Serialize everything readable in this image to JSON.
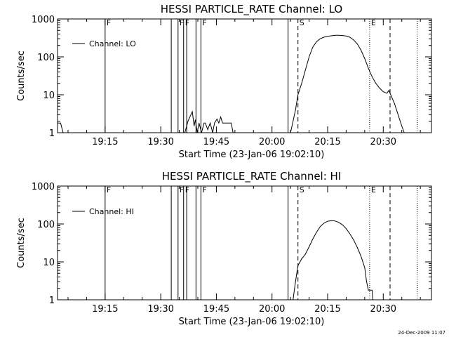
{
  "page": {
    "timestamp": "24-Dec-2009 11:07"
  },
  "chart_data": [
    {
      "type": "line",
      "title": "HESSI PARTICLE_RATE Channel: LO",
      "xlabel": "Start Time (23-Jan-06 19:02:10)",
      "ylabel": "Counts/sec",
      "yscale": "log",
      "xlim": [
        "19:02:10",
        "20:43:00"
      ],
      "ylim": [
        1,
        1000
      ],
      "x_ticks": [
        "19:15",
        "19:30",
        "19:45",
        "20:00",
        "20:15",
        "20:30"
      ],
      "y_ticks": [
        "1",
        "10",
        "100",
        "1000"
      ],
      "legend": {
        "position": "top-left",
        "entries": [
          "Channel: LO"
        ]
      },
      "series": [
        {
          "name": "Channel: LO",
          "segments": [
            [
              [
                "19:02:10",
                1.8
              ],
              [
                "19:03:00",
                1.8
              ],
              [
                "19:03:40",
                1.0
              ],
              [
                "19:04:00",
                1.0
              ]
            ],
            [
              [
                "19:36:30",
                1.0
              ],
              [
                "19:37:20",
                2.0
              ],
              [
                "19:38:00",
                2.8
              ],
              [
                "19:38:30",
                3.6
              ],
              [
                "19:39:00",
                1.5
              ],
              [
                "19:39:20",
                2.2
              ],
              [
                "19:39:50",
                1.0
              ],
              [
                "19:40:20",
                1.8
              ],
              [
                "19:41:00",
                1.0
              ],
              [
                "19:41:40",
                1.8
              ],
              [
                "19:42:00",
                1.8
              ],
              [
                "19:42:40",
                1.2
              ],
              [
                "19:43:20",
                1.8
              ],
              [
                "19:44:00",
                1.0
              ],
              [
                "19:44:30",
                1.8
              ],
              [
                "19:45:10",
                2.3
              ],
              [
                "19:45:40",
                1.8
              ],
              [
                "19:46:10",
                2.6
              ],
              [
                "19:46:40",
                1.8
              ],
              [
                "19:49:00",
                1.8
              ],
              [
                "19:49:30",
                1.0
              ]
            ],
            [
              [
                "20:05:00",
                1.0
              ],
              [
                "20:05:40",
                2.0
              ],
              [
                "20:06:20",
                4.0
              ],
              [
                "20:07:00",
                10.0
              ],
              [
                "20:08:00",
                20
              ],
              [
                "20:09:00",
                45
              ],
              [
                "20:10:00",
                100
              ],
              [
                "20:11:00",
                180
              ],
              [
                "20:12:00",
                250
              ],
              [
                "20:13:00",
                300
              ],
              [
                "20:14:00",
                330
              ],
              [
                "20:15:00",
                350
              ],
              [
                "20:16:00",
                360
              ],
              [
                "20:17:00",
                370
              ],
              [
                "20:18:00",
                370
              ],
              [
                "20:19:00",
                365
              ],
              [
                "20:20:00",
                355
              ],
              [
                "20:21:00",
                330
              ],
              [
                "20:22:00",
                280
              ],
              [
                "20:23:00",
                220
              ],
              [
                "20:24:00",
                150
              ],
              [
                "20:25:00",
                90
              ],
              [
                "20:26:00",
                50
              ],
              [
                "20:27:00",
                30
              ],
              [
                "20:28:00",
                20
              ],
              [
                "20:29:00",
                15
              ],
              [
                "20:30:00",
                12
              ],
              [
                "20:31:00",
                11
              ],
              [
                "20:31:30",
                13
              ],
              [
                "20:32:00",
                10
              ],
              [
                "20:33:00",
                6
              ],
              [
                "20:34:00",
                3
              ],
              [
                "20:35:00",
                1.5
              ],
              [
                "20:35:40",
                1.0
              ]
            ]
          ]
        }
      ],
      "markers": [
        {
          "label": "F",
          "time": "19:15:00",
          "style": "solid"
        },
        {
          "label": "",
          "time": "19:32:50",
          "style": "solid"
        },
        {
          "label": "F",
          "time": "19:34:40",
          "style": "solid"
        },
        {
          "label": "F",
          "time": "19:36:10",
          "style": "solid"
        },
        {
          "label": "",
          "time": "19:37:00",
          "style": "solid"
        },
        {
          "label": "",
          "time": "19:39:30",
          "style": "solid"
        },
        {
          "label": "F",
          "time": "19:40:50",
          "style": "solid"
        },
        {
          "label": "",
          "time": "20:04:20",
          "style": "solid"
        },
        {
          "label": "S",
          "time": "20:07:00",
          "style": "dashed"
        },
        {
          "label": "E",
          "time": "20:26:20",
          "style": "dotted"
        },
        {
          "label": "",
          "time": "20:31:50",
          "style": "dashed"
        },
        {
          "label": "",
          "time": "20:39:10",
          "style": "dotted"
        }
      ]
    },
    {
      "type": "line",
      "title": "HESSI PARTICLE_RATE Channel: HI",
      "xlabel": "Start Time (23-Jan-06 19:02:10)",
      "ylabel": "Counts/sec",
      "yscale": "log",
      "xlim": [
        "19:02:10",
        "20:43:00"
      ],
      "ylim": [
        1,
        1000
      ],
      "x_ticks": [
        "19:15",
        "19:30",
        "19:45",
        "20:00",
        "20:15",
        "20:30"
      ],
      "y_ticks": [
        "1",
        "10",
        "100",
        "1000"
      ],
      "legend": {
        "position": "top-left",
        "entries": [
          "Channel: HI"
        ]
      },
      "series": [
        {
          "name": "Channel: HI",
          "segments": [
            [
              [
                "20:05:40",
                1.0
              ],
              [
                "20:06:20",
                3.0
              ],
              [
                "20:07:00",
                8.0
              ],
              [
                "20:08:00",
                12
              ],
              [
                "20:09:00",
                16
              ],
              [
                "20:10:00",
                25
              ],
              [
                "20:11:00",
                40
              ],
              [
                "20:12:00",
                60
              ],
              [
                "20:13:00",
                85
              ],
              [
                "20:14:00",
                105
              ],
              [
                "20:15:00",
                118
              ],
              [
                "20:16:00",
                122
              ],
              [
                "20:17:00",
                120
              ],
              [
                "20:18:00",
                110
              ],
              [
                "20:19:00",
                95
              ],
              [
                "20:20:00",
                75
              ],
              [
                "20:21:00",
                55
              ],
              [
                "20:22:00",
                38
              ],
              [
                "20:23:00",
                24
              ],
              [
                "20:24:00",
                14
              ],
              [
                "20:25:00",
                7
              ],
              [
                "20:25:30",
                3
              ],
              [
                "20:26:00",
                1.8
              ],
              [
                "20:27:00",
                1.8
              ],
              [
                "20:27:10",
                1.0
              ]
            ]
          ]
        }
      ],
      "markers": [
        {
          "label": "F",
          "time": "19:15:00",
          "style": "solid"
        },
        {
          "label": "",
          "time": "19:32:50",
          "style": "solid"
        },
        {
          "label": "F",
          "time": "19:34:40",
          "style": "solid"
        },
        {
          "label": "F",
          "time": "19:36:10",
          "style": "solid"
        },
        {
          "label": "",
          "time": "19:37:00",
          "style": "solid"
        },
        {
          "label": "",
          "time": "19:39:30",
          "style": "solid"
        },
        {
          "label": "F",
          "time": "19:40:50",
          "style": "solid"
        },
        {
          "label": "",
          "time": "20:04:20",
          "style": "solid"
        },
        {
          "label": "S",
          "time": "20:07:00",
          "style": "dashed"
        },
        {
          "label": "E",
          "time": "20:26:20",
          "style": "dotted"
        },
        {
          "label": "",
          "time": "20:31:50",
          "style": "dashed"
        },
        {
          "label": "",
          "time": "20:39:10",
          "style": "dotted"
        }
      ]
    }
  ]
}
